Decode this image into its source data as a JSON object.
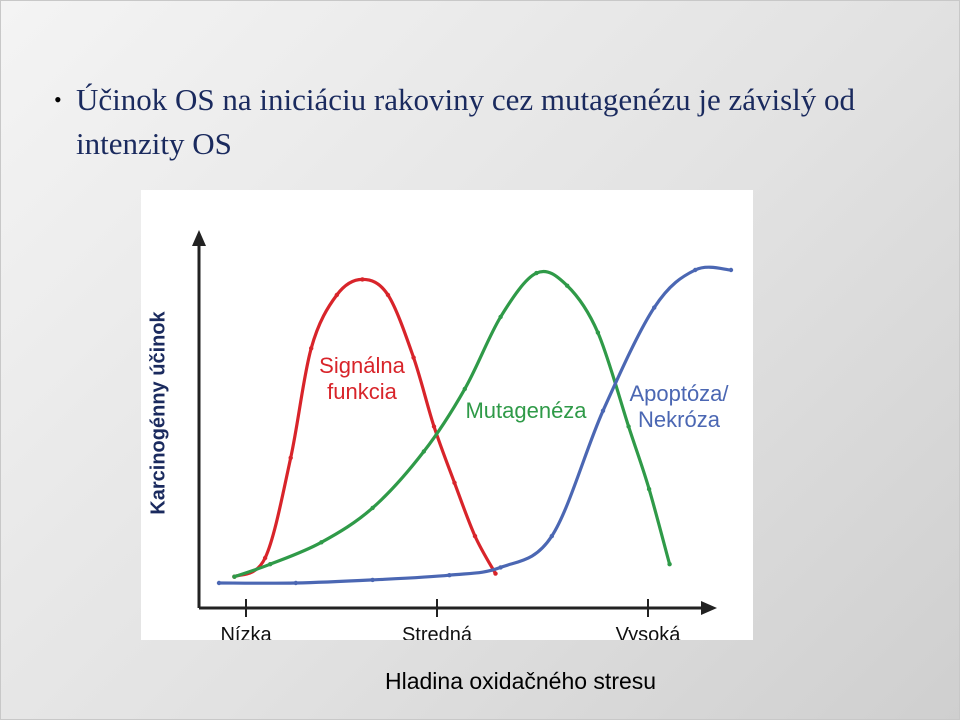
{
  "slide": {
    "bullet": "•",
    "title_line1": "Účinok OS na iniciáciu rakoviny cez mutagenézu je závislý od",
    "title_line2": "intenzity OS"
  },
  "chart_data": {
    "type": "line",
    "title": "",
    "xlabel": "Hladina oxidačného stresu",
    "ylabel": "Karcinogénny účinok",
    "categories": [
      "Nízka",
      "Stredná",
      "Vysoká"
    ],
    "xlim": [
      0,
      10
    ],
    "ylim": [
      0,
      1
    ],
    "grid": false,
    "legend": "none",
    "series": [
      {
        "name": "Signálna funkcia",
        "label_lines": [
          "Signálna",
          "funkcia"
        ],
        "color": "#d8242a",
        "x": [
          0.3,
          0.9,
          1.4,
          1.8,
          2.3,
          2.8,
          3.3,
          3.8,
          4.2,
          4.6,
          5.0,
          5.4
        ],
        "y": [
          0.02,
          0.08,
          0.4,
          0.75,
          0.92,
          0.97,
          0.92,
          0.72,
          0.5,
          0.32,
          0.15,
          0.03
        ]
      },
      {
        "name": "Mutagenéza",
        "label_lines": [
          "Mutagenéza"
        ],
        "color": "#2f9a48",
        "x": [
          0.3,
          1.0,
          2.0,
          3.0,
          4.0,
          4.8,
          5.5,
          6.2,
          6.8,
          7.4,
          8.0,
          8.4,
          8.8
        ],
        "y": [
          0.02,
          0.06,
          0.13,
          0.24,
          0.42,
          0.62,
          0.85,
          0.99,
          0.95,
          0.8,
          0.5,
          0.3,
          0.06
        ]
      },
      {
        "name": "Apoptóza/Nekróza",
        "label_lines": [
          "Apoptóza/",
          "Nekróza"
        ],
        "color": "#4b67b3",
        "x": [
          0.0,
          1.5,
          3.0,
          4.5,
          5.5,
          6.5,
          7.5,
          8.5,
          9.3,
          10.0
        ],
        "y": [
          0.0,
          0.0,
          0.01,
          0.025,
          0.05,
          0.15,
          0.55,
          0.88,
          1.0,
          1.0
        ]
      }
    ]
  }
}
